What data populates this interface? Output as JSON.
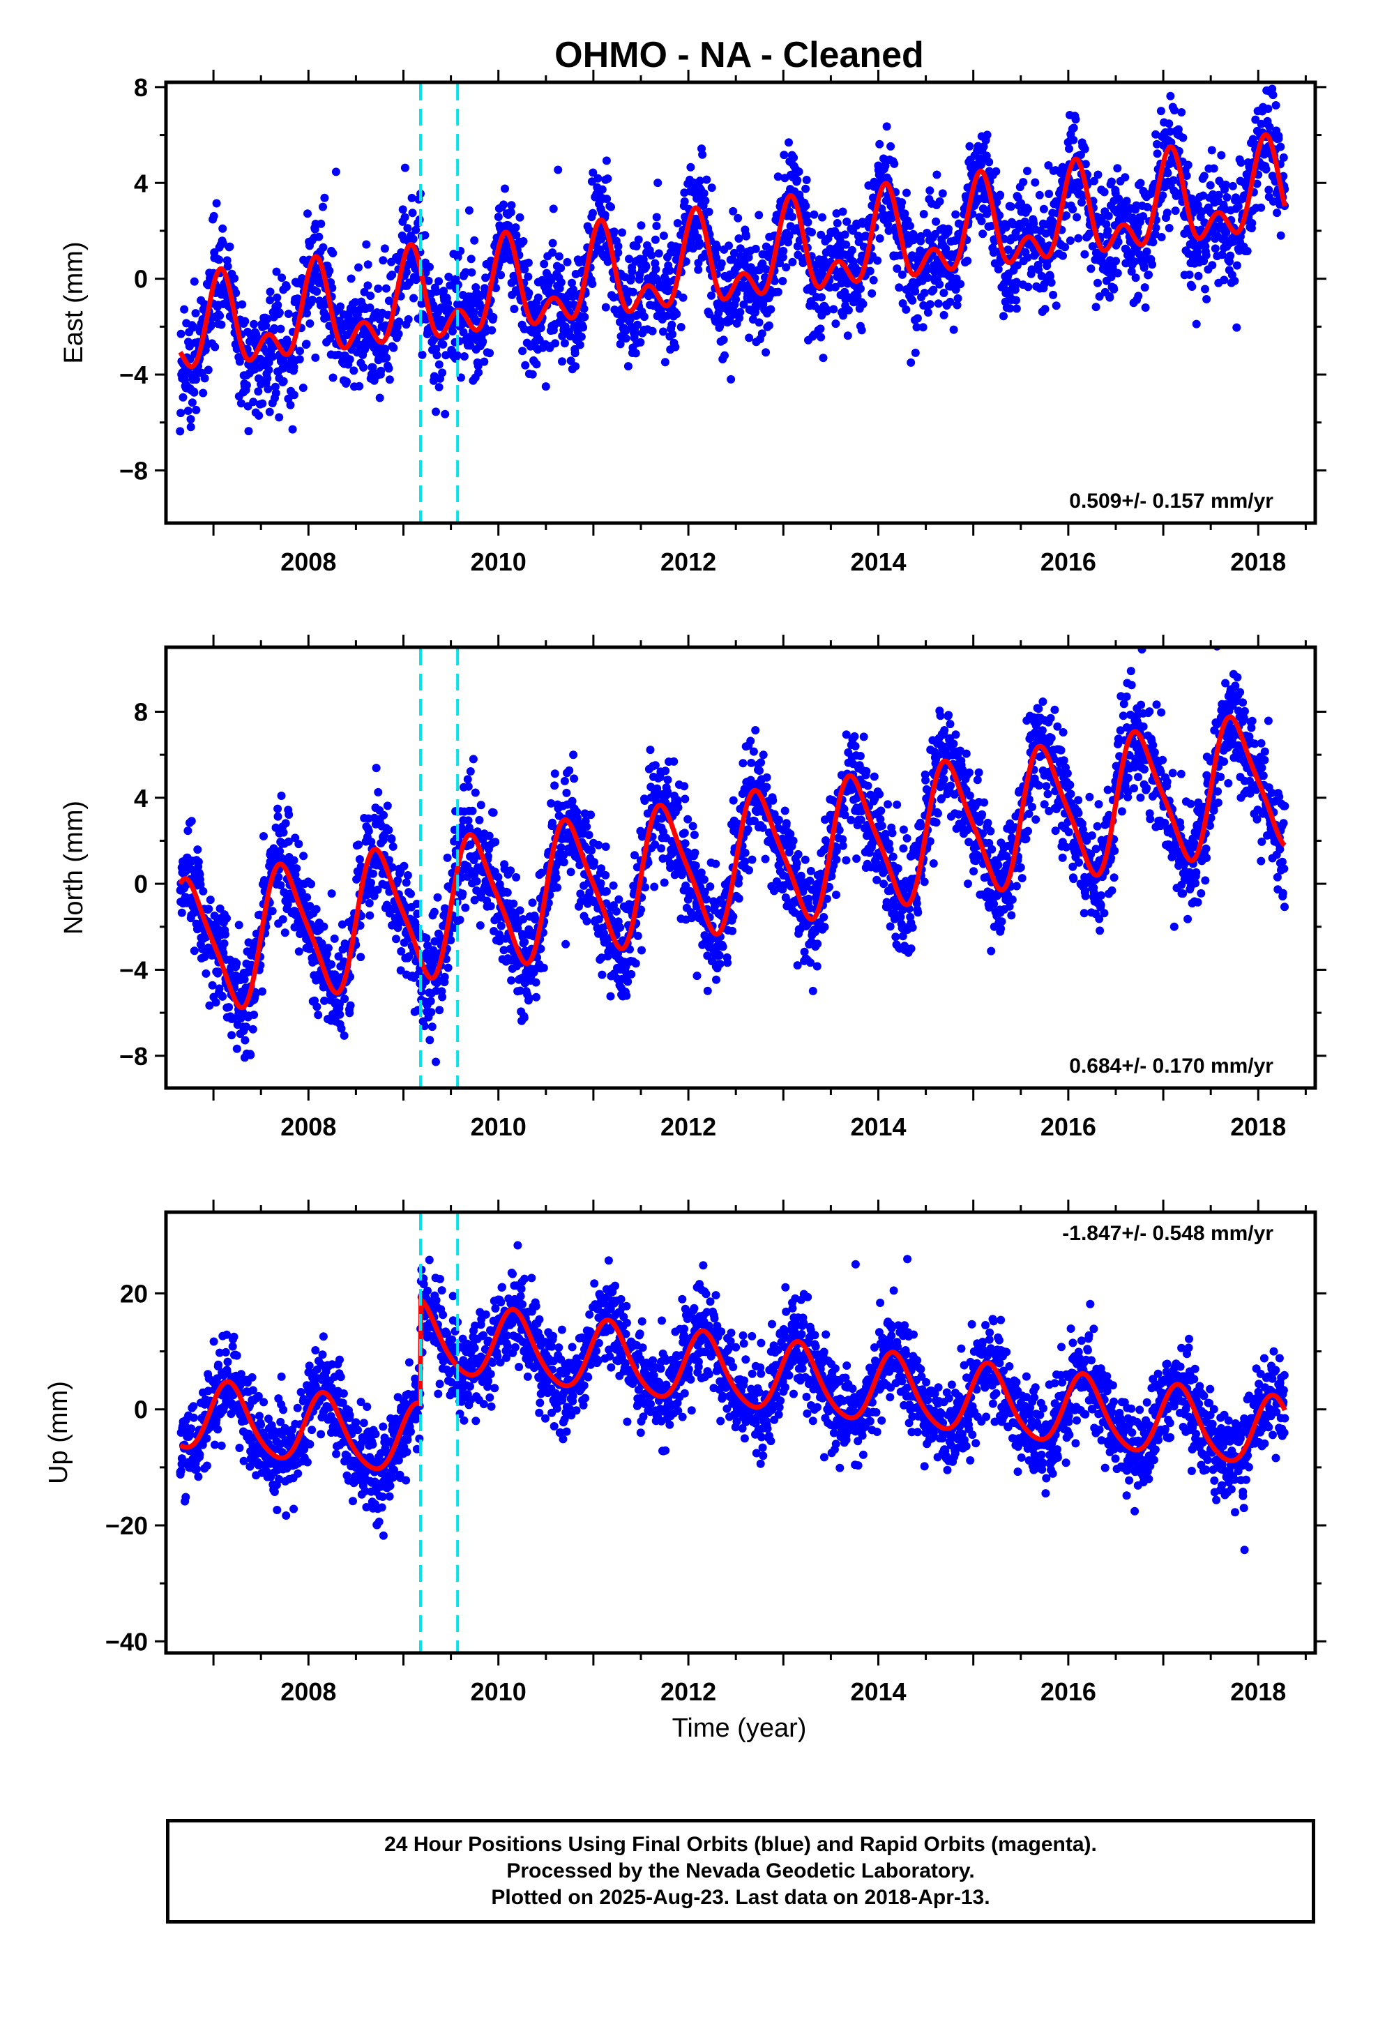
{
  "chart_data": {
    "title": "OHMO  - NA - Cleaned",
    "type": "scatter",
    "x_range": [
      2006.5,
      2018.6
    ],
    "x_ticks": [
      2008,
      2010,
      2012,
      2014,
      2016,
      2018
    ],
    "x_label": "Time (year)",
    "data_start": 2006.65,
    "last_data": 2018.28,
    "vertical_markers": [
      2009.18,
      2009.57
    ],
    "point_color": "#0000ff",
    "model_color": "#ff0000",
    "marker_color": "#00e5ee",
    "offset_up_at": 2009.18,
    "panels": [
      {
        "component": "East",
        "ylabel": "East (mm)",
        "ylim": [
          -10.2,
          8.2
        ],
        "yticks": [
          "8",
          "4",
          "0",
          "−4",
          "−8"
        ],
        "ytick_values": [
          8,
          4,
          0,
          -4,
          -8
        ],
        "rate_text": "0.509+/- 0.157 mm/yr",
        "rate_position": "bottom-right",
        "model": {
          "offset": -2.4,
          "trend_mm_per_yr": 0.509,
          "annual_amp": 1.5,
          "annual_phase": 1.1,
          "semi_amp": 1.1,
          "semi_phase": 0.6,
          "step": 0
        },
        "scatter": {
          "noise": 1.2,
          "count": 3100
        }
      },
      {
        "component": "North",
        "ylabel": "North (mm)",
        "ylim": [
          -9.5,
          11.0
        ],
        "yticks": [
          "8",
          "4",
          "0",
          "−4",
          "−8"
        ],
        "ytick_values": [
          8,
          4,
          0,
          -4,
          -8
        ],
        "rate_text": "0.684+/- 0.170 mm/yr",
        "rate_position": "bottom-right",
        "model": {
          "offset": -3.0,
          "trend_mm_per_yr": 0.684,
          "annual_amp": 3.0,
          "annual_phase": 3.14,
          "semi_amp": 0.6,
          "semi_phase": 0.0,
          "step": 0
        },
        "scatter": {
          "noise": 1.3,
          "count": 3100
        }
      },
      {
        "component": "Up",
        "ylabel": "Up (mm)",
        "ylim": [
          -42,
          34
        ],
        "yticks": [
          "20",
          "0",
          "−20",
          "−40"
        ],
        "ytick_values": [
          20,
          0,
          -20,
          -40
        ],
        "rate_text": "-1.847+/- 0.548 mm/yr",
        "rate_position": "top-right",
        "model": {
          "offset": -1.0,
          "trend_mm_per_yr": -1.847,
          "annual_amp": 6.0,
          "annual_phase": 0.5,
          "semi_amp": 0.8,
          "semi_phase": 0.0,
          "step": 18
        },
        "scatter": {
          "noise": 4.0,
          "count": 3100
        }
      }
    ]
  },
  "footer": {
    "line1": "24 Hour Positions Using Final Orbits (blue) and Rapid Orbits (magenta).",
    "line2": "Processed by the Nevada Geodetic Laboratory.",
    "line3": "Plotted on 2025-Aug-23. Last data on 2018-Apr-13."
  }
}
